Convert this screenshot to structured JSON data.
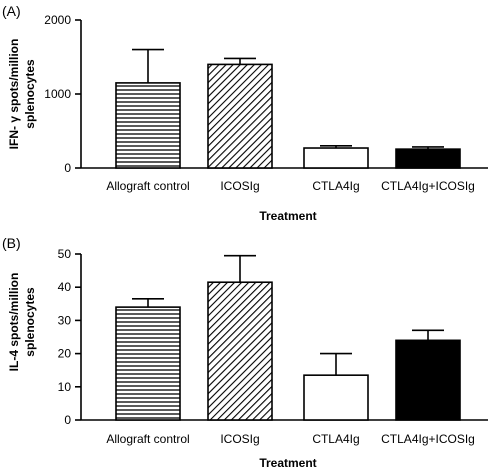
{
  "chart_data": [
    {
      "type": "bar",
      "panel_label": "(A)",
      "categories": [
        "Allograft control",
        "ICOSIg",
        "CTLA4Ig",
        "CTLA4Ig+ICOSIg"
      ],
      "values": [
        1150,
        1400,
        270,
        255
      ],
      "errors": [
        450,
        80,
        30,
        30
      ],
      "patterns": [
        "horizontal-stripes",
        "diagonal-hatch",
        "empty",
        "solid"
      ],
      "ylabel_lines": [
        "IFN- γ spots/million",
        "splenocytes"
      ],
      "xlabel": "Treatment",
      "ylim": [
        0,
        2000
      ],
      "yticks": [
        0,
        1000,
        2000
      ]
    },
    {
      "type": "bar",
      "panel_label": "(B)",
      "categories": [
        "Allograft control",
        "ICOSIg",
        "CTLA4Ig",
        "CTLA4Ig+ICOSIg"
      ],
      "values": [
        34,
        41.5,
        13.5,
        24
      ],
      "errors": [
        2.5,
        8,
        6.5,
        3
      ],
      "patterns": [
        "horizontal-stripes",
        "diagonal-hatch",
        "empty",
        "solid"
      ],
      "ylabel_lines": [
        "IL-4 spots/million",
        "splenocytes"
      ],
      "xlabel": "Treatment",
      "ylim": [
        0,
        50
      ],
      "yticks": [
        0,
        10,
        20,
        30,
        40,
        50
      ]
    }
  ]
}
